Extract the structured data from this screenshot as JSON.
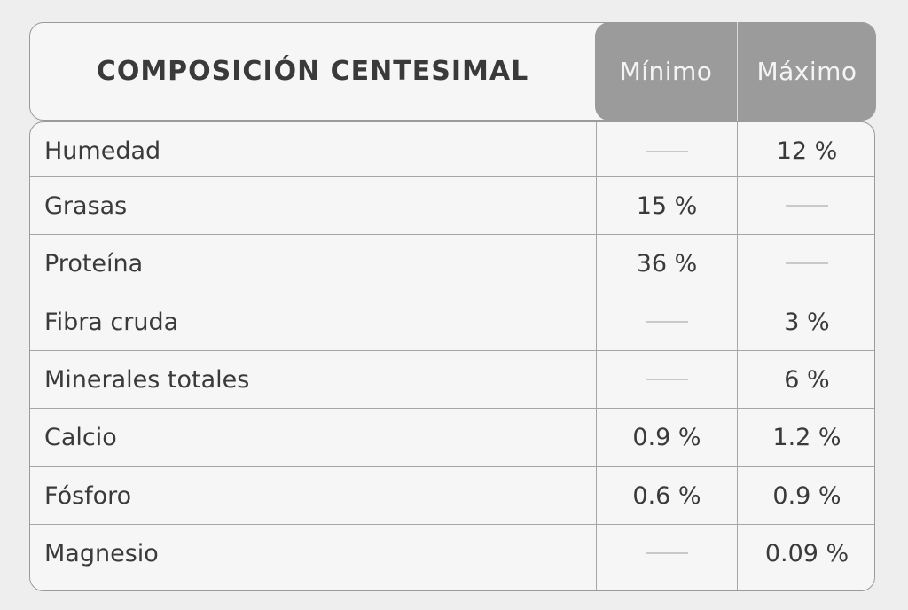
{
  "header": {
    "title": "COMPOSICIÓN CENTESIMAL",
    "min_label": "Mínimo",
    "max_label": "Máximo"
  },
  "rows": [
    {
      "label": "Humedad",
      "min": "—",
      "max": "12 %"
    },
    {
      "label": "Grasas",
      "min": "15 %",
      "max": "—"
    },
    {
      "label": "Proteína",
      "min": "36 %",
      "max": "—"
    },
    {
      "label": "Fibra cruda",
      "min": "—",
      "max": "3 %"
    },
    {
      "label": "Minerales totales",
      "min": "—",
      "max": "6 %"
    },
    {
      "label": "Calcio",
      "min": "0.9 %",
      "max": "1.2 %"
    },
    {
      "label": "Fósforo",
      "min": "0.6 %",
      "max": "0.9 %"
    },
    {
      "label": "Magnesio",
      "min": "—",
      "max": "0.09 %"
    }
  ],
  "colors": {
    "header_fill": "#9b9b9c",
    "border": "#9a9a9a",
    "background": "#eeeeee",
    "text": "#3a3a3a"
  }
}
